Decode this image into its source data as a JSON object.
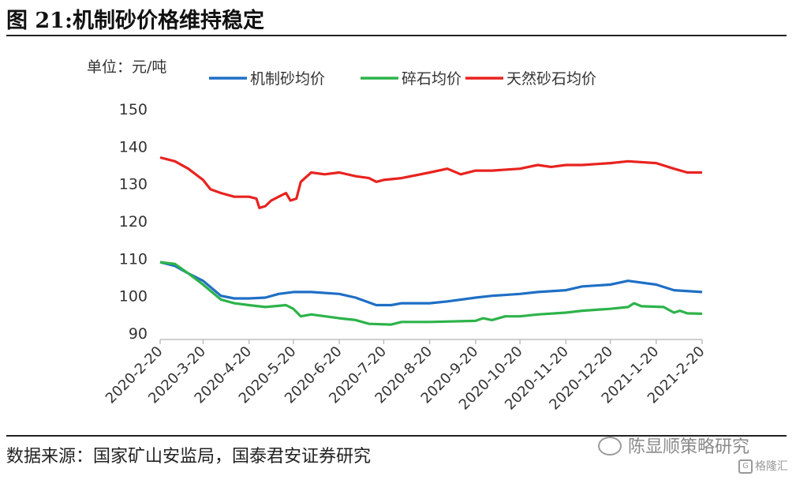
{
  "figure": {
    "title": "图 21:机制砂价格维持稳定",
    "source": "数据来源：国家矿山安监局，国泰君安证券研究",
    "watermark": "陈显顺策略研究",
    "watermark_logo": "格隆汇"
  },
  "chart_data": {
    "type": "line",
    "unit_label": "单位：元/吨",
    "ylim": [
      90,
      150
    ],
    "yticks": [
      90,
      100,
      110,
      120,
      130,
      140,
      150
    ],
    "xlim": [
      "2020-02-20",
      "2021-02-20"
    ],
    "xticks": [
      "2020-2-20",
      "2020-3-20",
      "2020-4-20",
      "2020-5-20",
      "2020-6-20",
      "2020-7-20",
      "2020-8-20",
      "2020-9-20",
      "2020-10-20",
      "2020-11-20",
      "2020-12-20",
      "2021-1-20",
      "2021-2-20"
    ],
    "grid": false,
    "legend_position": "top",
    "series": [
      {
        "name": "机制砂均价",
        "color": "#1f6fc5",
        "points": [
          [
            "2020-02-20",
            109
          ],
          [
            "2020-03-01",
            108
          ],
          [
            "2020-03-10",
            106
          ],
          [
            "2020-03-20",
            104
          ],
          [
            "2020-04-01",
            100
          ],
          [
            "2020-04-10",
            99.3
          ],
          [
            "2020-04-20",
            99.3
          ],
          [
            "2020-05-01",
            99.5
          ],
          [
            "2020-05-10",
            100.5
          ],
          [
            "2020-05-20",
            101
          ],
          [
            "2020-06-01",
            101
          ],
          [
            "2020-06-20",
            100.5
          ],
          [
            "2020-07-01",
            99.5
          ],
          [
            "2020-07-15",
            97.5
          ],
          [
            "2020-07-25",
            97.5
          ],
          [
            "2020-08-01",
            98
          ],
          [
            "2020-08-20",
            98
          ],
          [
            "2020-09-01",
            98.5
          ],
          [
            "2020-09-20",
            99.5
          ],
          [
            "2020-10-01",
            100
          ],
          [
            "2020-10-20",
            100.5
          ],
          [
            "2020-11-01",
            101
          ],
          [
            "2020-11-20",
            101.5
          ],
          [
            "2020-12-01",
            102.5
          ],
          [
            "2020-12-20",
            103
          ],
          [
            "2021-01-01",
            104
          ],
          [
            "2021-01-20",
            103
          ],
          [
            "2021-02-01",
            101.5
          ],
          [
            "2021-02-20",
            101
          ]
        ]
      },
      {
        "name": "碎石均价",
        "color": "#2db34a",
        "points": [
          [
            "2020-02-20",
            109
          ],
          [
            "2020-03-01",
            108.5
          ],
          [
            "2020-03-10",
            106
          ],
          [
            "2020-03-20",
            103
          ],
          [
            "2020-04-01",
            99
          ],
          [
            "2020-04-10",
            98
          ],
          [
            "2020-04-20",
            97.5
          ],
          [
            "2020-05-01",
            97
          ],
          [
            "2020-05-15",
            97.5
          ],
          [
            "2020-05-20",
            96.5
          ],
          [
            "2020-05-25",
            94.5
          ],
          [
            "2020-06-01",
            95
          ],
          [
            "2020-06-20",
            94
          ],
          [
            "2020-07-01",
            93.5
          ],
          [
            "2020-07-10",
            92.5
          ],
          [
            "2020-07-25",
            92.3
          ],
          [
            "2020-08-01",
            93
          ],
          [
            "2020-08-20",
            93
          ],
          [
            "2020-09-20",
            93.3
          ],
          [
            "2020-09-25",
            94
          ],
          [
            "2020-10-01",
            93.5
          ],
          [
            "2020-10-10",
            94.5
          ],
          [
            "2020-10-20",
            94.5
          ],
          [
            "2020-11-01",
            95
          ],
          [
            "2020-11-20",
            95.5
          ],
          [
            "2020-12-01",
            96
          ],
          [
            "2020-12-20",
            96.5
          ],
          [
            "2021-01-01",
            97
          ],
          [
            "2021-01-05",
            98
          ],
          [
            "2021-01-10",
            97.2
          ],
          [
            "2021-01-25",
            97
          ],
          [
            "2021-02-01",
            95.5
          ],
          [
            "2021-02-05",
            96
          ],
          [
            "2021-02-10",
            95.3
          ],
          [
            "2021-02-20",
            95.2
          ]
        ]
      },
      {
        "name": "天然砂石均价",
        "color": "#e8231f",
        "points": [
          [
            "2020-02-20",
            137
          ],
          [
            "2020-03-01",
            136
          ],
          [
            "2020-03-10",
            134
          ],
          [
            "2020-03-20",
            131
          ],
          [
            "2020-03-25",
            128.5
          ],
          [
            "2020-04-01",
            127.5
          ],
          [
            "2020-04-10",
            126.5
          ],
          [
            "2020-04-20",
            126.5
          ],
          [
            "2020-04-25",
            126
          ],
          [
            "2020-04-27",
            123.5
          ],
          [
            "2020-05-01",
            124
          ],
          [
            "2020-05-05",
            125.5
          ],
          [
            "2020-05-10",
            126.5
          ],
          [
            "2020-05-15",
            127.5
          ],
          [
            "2020-05-18",
            125.5
          ],
          [
            "2020-05-22",
            126
          ],
          [
            "2020-05-25",
            130.5
          ],
          [
            "2020-06-01",
            133
          ],
          [
            "2020-06-10",
            132.5
          ],
          [
            "2020-06-20",
            133
          ],
          [
            "2020-07-01",
            132
          ],
          [
            "2020-07-10",
            131.5
          ],
          [
            "2020-07-15",
            130.5
          ],
          [
            "2020-07-20",
            131
          ],
          [
            "2020-08-01",
            131.5
          ],
          [
            "2020-08-20",
            133
          ],
          [
            "2020-09-01",
            134
          ],
          [
            "2020-09-10",
            132.5
          ],
          [
            "2020-09-20",
            133.5
          ],
          [
            "2020-10-01",
            133.5
          ],
          [
            "2020-10-20",
            134
          ],
          [
            "2020-11-01",
            135
          ],
          [
            "2020-11-10",
            134.5
          ],
          [
            "2020-11-20",
            135
          ],
          [
            "2020-12-01",
            135
          ],
          [
            "2020-12-20",
            135.5
          ],
          [
            "2021-01-01",
            136
          ],
          [
            "2021-01-20",
            135.5
          ],
          [
            "2021-02-01",
            134
          ],
          [
            "2021-02-10",
            133
          ],
          [
            "2021-02-20",
            133
          ]
        ]
      }
    ]
  }
}
